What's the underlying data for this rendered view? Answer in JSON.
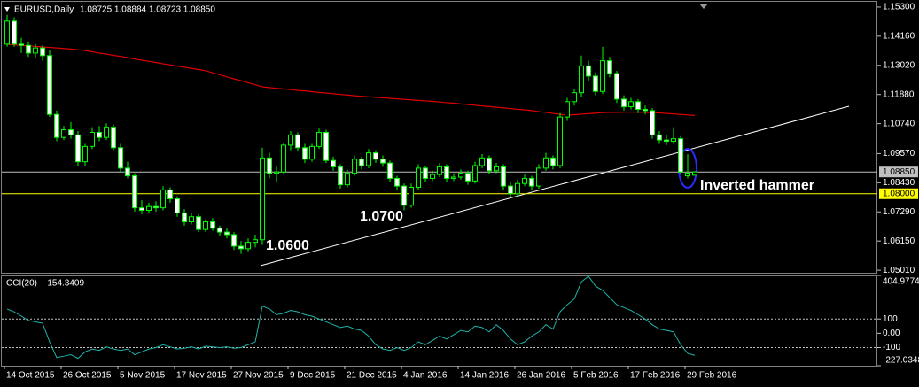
{
  "chart_data": {
    "type": "candlestick",
    "header": {
      "symbol": "EURUSD,Daily",
      "quote": "1.08725 1.08884 1.08723 1.08850"
    },
    "categories": [
      "14 Oct 2015",
      null,
      null,
      null,
      null,
      null,
      null,
      null,
      "26 Oct 2015",
      null,
      null,
      null,
      null,
      null,
      null,
      null,
      "5 Nov 2015",
      null,
      null,
      null,
      null,
      null,
      null,
      null,
      "17 Nov 2015",
      null,
      null,
      null,
      null,
      null,
      null,
      null,
      "27 Nov 2015",
      null,
      null,
      null,
      null,
      null,
      null,
      null,
      "9 Dec 2015",
      null,
      null,
      null,
      null,
      null,
      null,
      null,
      "21 Dec 2015",
      null,
      null,
      null,
      null,
      null,
      null,
      null,
      "4 Jan 2016",
      null,
      null,
      null,
      null,
      null,
      null,
      null,
      "14 Jan 2016",
      null,
      null,
      null,
      null,
      null,
      null,
      null,
      "26 Jan 2016",
      null,
      null,
      null,
      null,
      null,
      null,
      null,
      "5 Feb 2016",
      null,
      null,
      null,
      null,
      null,
      null,
      null,
      "17 Feb 2016",
      null,
      null,
      null,
      null,
      null,
      null,
      null,
      "29 Feb 2016",
      null
    ],
    "candles": [
      [
        1.1385,
        1.15,
        1.1375,
        1.1475
      ],
      [
        1.1475,
        1.149,
        1.1375,
        1.1385
      ],
      [
        1.1385,
        1.141,
        1.135,
        1.138
      ],
      [
        1.138,
        1.1395,
        1.1335,
        1.135
      ],
      [
        1.135,
        1.1385,
        1.133,
        1.137
      ],
      [
        1.137,
        1.138,
        1.132,
        1.134
      ],
      [
        1.134,
        1.136,
        1.11,
        1.111
      ],
      [
        1.111,
        1.1125,
        1.1005,
        1.102
      ],
      [
        1.102,
        1.1065,
        1.101,
        1.105
      ],
      [
        1.105,
        1.108,
        1.1015,
        1.103
      ],
      [
        1.103,
        1.1045,
        1.091,
        1.0925
      ],
      [
        1.0925,
        1.0995,
        1.091,
        1.0985
      ],
      [
        1.0985,
        1.106,
        1.0975,
        1.104
      ],
      [
        1.104,
        1.1065,
        1.1005,
        1.102
      ],
      [
        1.102,
        1.1075,
        1.101,
        1.106
      ],
      [
        1.106,
        1.107,
        1.097,
        1.098
      ],
      [
        1.098,
        1.0995,
        1.0885,
        1.09
      ],
      [
        1.09,
        1.0925,
        1.086,
        1.087
      ],
      [
        1.087,
        1.088,
        1.073,
        1.0745
      ],
      [
        1.0745,
        1.0775,
        1.072,
        1.0735
      ],
      [
        1.0735,
        1.0765,
        1.0725,
        1.075
      ],
      [
        1.075,
        1.077,
        1.073,
        1.0745
      ],
      [
        1.0745,
        1.083,
        1.0735,
        1.0815
      ],
      [
        1.0815,
        1.0825,
        1.0765,
        1.078
      ],
      [
        1.078,
        1.079,
        1.071,
        1.0725
      ],
      [
        1.0725,
        1.074,
        1.0675,
        1.069
      ],
      [
        1.069,
        1.0725,
        1.068,
        1.071
      ],
      [
        1.071,
        1.072,
        1.065,
        1.066
      ],
      [
        1.066,
        1.07,
        1.065,
        1.069
      ],
      [
        1.069,
        1.0705,
        1.0655,
        1.0665
      ],
      [
        1.0665,
        1.0675,
        1.0635,
        1.065
      ],
      [
        1.065,
        1.0665,
        1.0625,
        1.064
      ],
      [
        1.064,
        1.065,
        1.058,
        1.0595
      ],
      [
        1.0595,
        1.0615,
        1.0565,
        1.0585
      ],
      [
        1.0585,
        1.0625,
        1.0575,
        1.061
      ],
      [
        1.061,
        1.064,
        1.059,
        1.062
      ],
      [
        1.062,
        1.098,
        1.06,
        1.094
      ],
      [
        1.094,
        1.096,
        1.086,
        1.088
      ],
      [
        1.088,
        1.0905,
        1.0845,
        1.0885
      ],
      [
        1.0885,
        1.1,
        1.0875,
        1.099
      ],
      [
        1.099,
        1.1045,
        1.097,
        1.103
      ],
      [
        1.103,
        1.104,
        1.0965,
        1.098
      ],
      [
        1.098,
        1.0995,
        1.092,
        1.0935
      ],
      [
        1.0935,
        1.0995,
        1.0925,
        1.0985
      ],
      [
        1.0985,
        1.1055,
        1.0975,
        1.104
      ],
      [
        1.104,
        1.105,
        1.092,
        1.093
      ],
      [
        1.093,
        1.0945,
        1.089,
        1.0905
      ],
      [
        1.0905,
        1.0915,
        1.082,
        1.0835
      ],
      [
        1.0835,
        1.0895,
        1.0825,
        1.088
      ],
      [
        1.088,
        1.095,
        1.087,
        1.0935
      ],
      [
        1.0935,
        1.0945,
        1.0895,
        1.091
      ],
      [
        1.091,
        1.0975,
        1.09,
        1.096
      ],
      [
        1.096,
        1.097,
        1.092,
        1.0935
      ],
      [
        1.0935,
        1.095,
        1.0905,
        1.092
      ],
      [
        1.092,
        1.093,
        1.0845,
        1.086
      ],
      [
        1.086,
        1.087,
        1.0815,
        1.083
      ],
      [
        1.083,
        1.084,
        1.0735,
        1.0755
      ],
      [
        1.0755,
        1.084,
        1.0745,
        1.0825
      ],
      [
        1.0825,
        1.0915,
        1.0815,
        1.09
      ],
      [
        1.09,
        1.091,
        1.0845,
        1.086
      ],
      [
        1.086,
        1.089,
        1.085,
        1.0875
      ],
      [
        1.0875,
        1.092,
        1.0865,
        1.0905
      ],
      [
        1.0905,
        1.0915,
        1.0845,
        1.086
      ],
      [
        1.086,
        1.088,
        1.085,
        1.0865
      ],
      [
        1.0865,
        1.0895,
        1.0855,
        1.088
      ],
      [
        1.088,
        1.089,
        1.0835,
        1.085
      ],
      [
        1.085,
        1.0925,
        1.084,
        1.091
      ],
      [
        1.091,
        1.0955,
        1.09,
        1.094
      ],
      [
        1.094,
        1.095,
        1.0875,
        1.089
      ],
      [
        1.089,
        1.092,
        1.088,
        1.0905
      ],
      [
        1.0905,
        1.0915,
        1.0815,
        1.083
      ],
      [
        1.083,
        1.0845,
        1.0785,
        1.08
      ],
      [
        1.08,
        1.0855,
        1.079,
        1.084
      ],
      [
        1.084,
        1.0875,
        1.083,
        1.086
      ],
      [
        1.086,
        1.087,
        1.0815,
        1.083
      ],
      [
        1.083,
        1.0915,
        1.082,
        1.09
      ],
      [
        1.09,
        1.096,
        1.089,
        1.094
      ],
      [
        1.094,
        1.095,
        1.0895,
        1.091
      ],
      [
        1.091,
        1.1115,
        1.09,
        1.11
      ],
      [
        1.11,
        1.1175,
        1.1085,
        1.116
      ],
      [
        1.116,
        1.121,
        1.1145,
        1.1195
      ],
      [
        1.1195,
        1.134,
        1.118,
        1.13
      ],
      [
        1.13,
        1.132,
        1.124,
        1.126
      ],
      [
        1.126,
        1.1275,
        1.1185,
        1.12
      ],
      [
        1.12,
        1.1375,
        1.119,
        1.132
      ],
      [
        1.132,
        1.1335,
        1.1255,
        1.127
      ],
      [
        1.127,
        1.128,
        1.1155,
        1.117
      ],
      [
        1.117,
        1.1185,
        1.1125,
        1.114
      ],
      [
        1.114,
        1.1175,
        1.113,
        1.116
      ],
      [
        1.116,
        1.117,
        1.1115,
        1.113
      ],
      [
        1.113,
        1.1145,
        1.111,
        1.1125
      ],
      [
        1.1125,
        1.1135,
        1.1015,
        1.103
      ],
      [
        1.103,
        1.1045,
        1.0995,
        1.101
      ],
      [
        1.101,
        1.103,
        1.099,
        1.1005
      ],
      [
        1.1005,
        1.106,
        1.0995,
        1.1015
      ],
      [
        1.1015,
        1.1025,
        1.0875,
        1.0885
      ],
      [
        1.087,
        1.0955,
        1.086,
        1.088
      ],
      [
        1.08725,
        1.08884,
        1.08723,
        1.0885
      ]
    ],
    "up_color": "#00ff00",
    "down_fill": "#ffffff",
    "ylim": [
      1.0491,
      1.1554
    ],
    "yticks": [
      {
        "value": 1.153,
        "label": "1.15300"
      },
      {
        "value": 1.1416,
        "label": "1.14160"
      },
      {
        "value": 1.1302,
        "label": "1.13020"
      },
      {
        "value": 1.1188,
        "label": "1.11880"
      },
      {
        "value": 1.1074,
        "label": "1.10740"
      },
      {
        "value": 1.0957,
        "label": "1.09570"
      },
      {
        "value": 1.0843,
        "label": "1.08430"
      },
      {
        "value": 1.0729,
        "label": "1.07290"
      },
      {
        "value": 1.0615,
        "label": "1.06150"
      },
      {
        "value": 1.0501,
        "label": "1.05010"
      }
    ],
    "hlines": [
      {
        "value": 1.0885,
        "label": "1.08850",
        "color": "#c0c0c0"
      },
      {
        "value": 1.08,
        "label": "1.08000",
        "color": "#ffff00"
      }
    ],
    "ma": {
      "color": "#e00000",
      "values": [
        1.1384,
        1.1382,
        1.138,
        1.1378,
        1.1376,
        1.1374,
        1.1372,
        1.137,
        1.1368,
        1.1366,
        1.1363,
        1.136,
        1.1355,
        1.135,
        1.1346,
        1.1341,
        1.1337,
        1.1332,
        1.1327,
        1.1322,
        1.1318,
        1.1313,
        1.1308,
        1.1304,
        1.1299,
        1.1295,
        1.129,
        1.1286,
        1.1281,
        1.1273,
        1.1265,
        1.1257,
        1.1249,
        1.1242,
        1.1234,
        1.1226,
        1.1218,
        1.1215,
        1.1212,
        1.121,
        1.1207,
        1.1204,
        1.1202,
        1.1199,
        1.1196,
        1.1194,
        1.1191,
        1.1188,
        1.1186,
        1.1183,
        1.1181,
        1.1179,
        1.1177,
        1.1175,
        1.1173,
        1.1171,
        1.1169,
        1.1167,
        1.1165,
        1.1163,
        1.1161,
        1.1159,
        1.1156,
        1.1154,
        1.1151,
        1.1149,
        1.1146,
        1.1143,
        1.1141,
        1.1138,
        1.1136,
        1.1133,
        1.113,
        1.1128,
        1.1125,
        1.1121,
        1.1118,
        1.1114,
        1.111,
        1.1107,
        1.1109,
        1.1111,
        1.1113,
        1.1115,
        1.1117,
        1.1118,
        1.1118,
        1.1119,
        1.1119,
        1.1119,
        1.1118,
        1.1117,
        1.1116,
        1.1114,
        1.1112,
        1.111,
        1.1108,
        1.1106
      ]
    },
    "cci": {
      "label": "CCI(20)",
      "color": "#20b2aa",
      "values": [
        170,
        150,
        120,
        90,
        80,
        70,
        -60,
        -170,
        -160,
        -150,
        -175,
        -130,
        -110,
        -120,
        -95,
        -110,
        -120,
        -110,
        -150,
        -130,
        -110,
        -100,
        -80,
        -95,
        -110,
        -105,
        -95,
        -110,
        -90,
        -95,
        -100,
        -95,
        -105,
        -100,
        -80,
        -60,
        190,
        170,
        130,
        140,
        160,
        150,
        130,
        120,
        100,
        80,
        60,
        40,
        50,
        30,
        20,
        -20,
        -80,
        -110,
        -120,
        -100,
        -120,
        -100,
        -60,
        -80,
        -50,
        -20,
        -40,
        -10,
        20,
        10,
        50,
        40,
        10,
        60,
        20,
        -40,
        -80,
        -60,
        -20,
        10,
        60,
        30,
        150,
        200,
        240,
        360,
        400,
        330,
        300,
        250,
        200,
        180,
        160,
        130,
        100,
        60,
        30,
        20,
        10,
        -80,
        -140,
        -154.3409
      ],
      "ylim": [
        -227.0348,
        404.9774
      ],
      "yticks": [
        404.9774,
        100,
        {
          "value": 0,
          "label": "0.00"
        },
        -100,
        -227.0348
      ],
      "levels": [
        100,
        -100
      ]
    },
    "annotations": [
      "1.0600",
      "1.0700",
      "Inverted hammer"
    ]
  }
}
